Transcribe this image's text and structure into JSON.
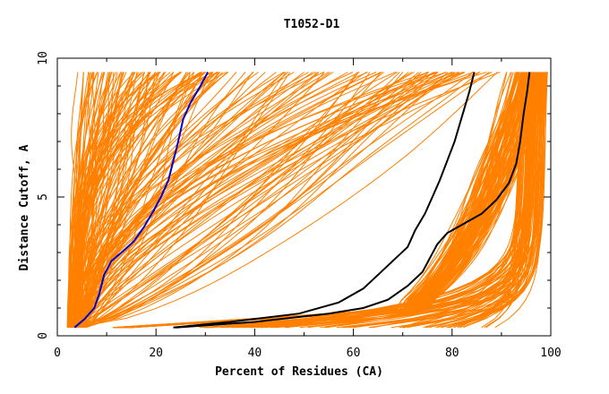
{
  "chart_data": {
    "type": "line",
    "title": "T1052-D1",
    "xlabel": "Percent of Residues (CA)",
    "ylabel": "Distance Cutoff, A",
    "xlim": [
      0,
      100
    ],
    "ylim": [
      0,
      10
    ],
    "xticks": [
      "0",
      "20",
      "40",
      "60",
      "80",
      "100"
    ],
    "yticks": [
      "0",
      "5",
      "10"
    ],
    "grid": false,
    "colors": {
      "background_series": "#ff8000",
      "highlight_blue": "#0000cc",
      "highlight_black": "#000000"
    },
    "series": [
      {
        "color": "#0000cc",
        "x": [
          3.5,
          5.5,
          7.5,
          8.5,
          9.5,
          11.0,
          13.0,
          15.5,
          17.5,
          19.5,
          21.0,
          22.5,
          23.5,
          24.5,
          25.5,
          27.0,
          29.0,
          30.5
        ],
        "y": [
          0.3,
          0.6,
          1.0,
          1.5,
          2.2,
          2.7,
          3.0,
          3.4,
          3.9,
          4.5,
          5.0,
          5.6,
          6.3,
          7.0,
          7.8,
          8.4,
          9.0,
          9.5
        ]
      },
      {
        "color": "#000000",
        "x": [
          23.5,
          35,
          49,
          57,
          62,
          65,
          68,
          71,
          72.5,
          74.5,
          76,
          77.5,
          79,
          80.5,
          81.5,
          82.5,
          83.5,
          84.5
        ],
        "y": [
          0.3,
          0.5,
          0.8,
          1.2,
          1.7,
          2.2,
          2.7,
          3.2,
          3.8,
          4.4,
          5.0,
          5.6,
          6.3,
          7.0,
          7.6,
          8.2,
          8.8,
          9.5
        ]
      },
      {
        "color": "#000000",
        "x": [
          24,
          40,
          55,
          62,
          67,
          71,
          74,
          75.5,
          77,
          79,
          82,
          86,
          89,
          91.5,
          93,
          93.8,
          94.5,
          95.2,
          95.7
        ],
        "y": [
          0.3,
          0.5,
          0.8,
          1.0,
          1.3,
          1.8,
          2.3,
          2.8,
          3.3,
          3.7,
          4.0,
          4.4,
          4.9,
          5.5,
          6.2,
          7.0,
          8.0,
          8.8,
          9.5
        ]
      }
    ]
  }
}
